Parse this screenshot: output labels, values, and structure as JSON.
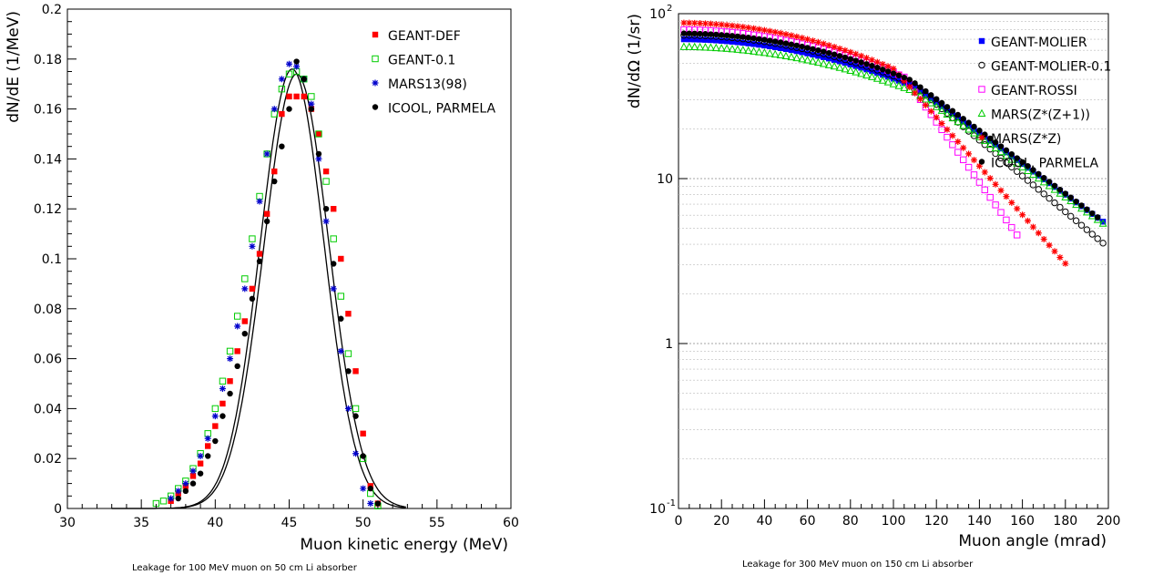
{
  "chart_data": [
    {
      "type": "scatter",
      "xlabel": "Muon kinetic energy (MeV)",
      "ylabel": "dN/dE    (1/MeV)",
      "caption": "Leakage for 100 MeV muon on 50 cm Li absorber",
      "xlim": [
        30,
        60
      ],
      "ylim": [
        0,
        0.2
      ],
      "x_ticks": [
        "30",
        "35",
        "40",
        "45",
        "50",
        "55",
        "60"
      ],
      "y_ticks": [
        "0",
        "0.02",
        "0.04",
        "0.06",
        "0.08",
        "0.1",
        "0.12",
        "0.14",
        "0.16",
        "0.18",
        "0.2"
      ],
      "legend_position": "top-right",
      "fit_curves": [
        {
          "mean": 45.2,
          "sigma": 2.15,
          "amplitude": 0.176,
          "color": "#000000"
        },
        {
          "mean": 45.5,
          "sigma": 2.2,
          "amplitude": 0.174,
          "color": "#000000"
        }
      ],
      "series": [
        {
          "name": "GEANT-DEF",
          "marker": "filled-square",
          "color": "#ff0000",
          "points": [
            [
              37.0,
              0.003
            ],
            [
              37.5,
              0.006
            ],
            [
              38.0,
              0.009
            ],
            [
              38.5,
              0.013
            ],
            [
              39.0,
              0.018
            ],
            [
              39.5,
              0.025
            ],
            [
              40.0,
              0.033
            ],
            [
              40.5,
              0.042
            ],
            [
              41.0,
              0.051
            ],
            [
              41.5,
              0.063
            ],
            [
              42.0,
              0.075
            ],
            [
              42.5,
              0.088
            ],
            [
              43.0,
              0.102
            ],
            [
              43.5,
              0.118
            ],
            [
              44.0,
              0.135
            ],
            [
              44.5,
              0.158
            ],
            [
              45.0,
              0.165
            ],
            [
              45.5,
              0.165
            ],
            [
              46.0,
              0.165
            ],
            [
              46.5,
              0.16
            ],
            [
              47.0,
              0.15
            ],
            [
              47.5,
              0.135
            ],
            [
              48.0,
              0.12
            ],
            [
              48.5,
              0.1
            ],
            [
              49.0,
              0.078
            ],
            [
              49.5,
              0.055
            ],
            [
              50.0,
              0.03
            ],
            [
              50.5,
              0.009
            ],
            [
              51.0,
              0.002
            ]
          ]
        },
        {
          "name": "GEANT-0.1",
          "marker": "open-square",
          "color": "#00cc00",
          "points": [
            [
              36.0,
              0.002
            ],
            [
              36.5,
              0.003
            ],
            [
              37.0,
              0.005
            ],
            [
              37.5,
              0.008
            ],
            [
              38.0,
              0.011
            ],
            [
              38.5,
              0.016
            ],
            [
              39.0,
              0.022
            ],
            [
              39.5,
              0.03
            ],
            [
              40.0,
              0.04
            ],
            [
              40.5,
              0.051
            ],
            [
              41.0,
              0.063
            ],
            [
              41.5,
              0.077
            ],
            [
              42.0,
              0.092
            ],
            [
              42.5,
              0.108
            ],
            [
              43.0,
              0.125
            ],
            [
              43.5,
              0.142
            ],
            [
              44.0,
              0.158
            ],
            [
              44.5,
              0.168
            ],
            [
              45.0,
              0.174
            ],
            [
              45.5,
              0.175
            ],
            [
              46.0,
              0.172
            ],
            [
              46.5,
              0.165
            ],
            [
              47.0,
              0.15
            ],
            [
              47.5,
              0.131
            ],
            [
              48.0,
              0.108
            ],
            [
              48.5,
              0.085
            ],
            [
              49.0,
              0.062
            ],
            [
              49.5,
              0.04
            ],
            [
              50.0,
              0.02
            ],
            [
              50.5,
              0.006
            ],
            [
              51.0,
              0.001
            ]
          ]
        },
        {
          "name": "MARS13(98)",
          "marker": "star",
          "color": "#0000cc",
          "points": [
            [
              37.0,
              0.004
            ],
            [
              37.5,
              0.007
            ],
            [
              38.0,
              0.01
            ],
            [
              38.5,
              0.015
            ],
            [
              39.0,
              0.021
            ],
            [
              39.5,
              0.028
            ],
            [
              40.0,
              0.037
            ],
            [
              40.5,
              0.048
            ],
            [
              41.0,
              0.06
            ],
            [
              41.5,
              0.073
            ],
            [
              42.0,
              0.088
            ],
            [
              42.5,
              0.105
            ],
            [
              43.0,
              0.123
            ],
            [
              43.5,
              0.142
            ],
            [
              44.0,
              0.16
            ],
            [
              44.5,
              0.172
            ],
            [
              45.0,
              0.178
            ],
            [
              45.5,
              0.177
            ],
            [
              46.0,
              0.172
            ],
            [
              46.5,
              0.162
            ],
            [
              47.0,
              0.14
            ],
            [
              47.5,
              0.115
            ],
            [
              48.0,
              0.088
            ],
            [
              48.5,
              0.063
            ],
            [
              49.0,
              0.04
            ],
            [
              49.5,
              0.022
            ],
            [
              50.0,
              0.008
            ],
            [
              50.5,
              0.002
            ]
          ]
        },
        {
          "name": "ICOOL, PARMELA",
          "marker": "filled-circle",
          "color": "#000000",
          "points": [
            [
              37.5,
              0.004
            ],
            [
              38.0,
              0.007
            ],
            [
              38.5,
              0.01
            ],
            [
              39.0,
              0.014
            ],
            [
              39.5,
              0.021
            ],
            [
              40.0,
              0.027
            ],
            [
              40.5,
              0.037
            ],
            [
              41.0,
              0.046
            ],
            [
              41.5,
              0.057
            ],
            [
              42.0,
              0.07
            ],
            [
              42.5,
              0.084
            ],
            [
              43.0,
              0.099
            ],
            [
              43.5,
              0.115
            ],
            [
              44.0,
              0.131
            ],
            [
              44.5,
              0.145
            ],
            [
              45.0,
              0.16
            ],
            [
              45.5,
              0.179
            ],
            [
              46.0,
              0.172
            ],
            [
              46.5,
              0.16
            ],
            [
              47.0,
              0.142
            ],
            [
              47.5,
              0.12
            ],
            [
              48.0,
              0.098
            ],
            [
              48.5,
              0.076
            ],
            [
              49.0,
              0.055
            ],
            [
              49.5,
              0.037
            ],
            [
              50.0,
              0.021
            ],
            [
              50.5,
              0.008
            ],
            [
              51.0,
              0.002
            ]
          ]
        }
      ]
    },
    {
      "type": "scatter",
      "xlabel": "Muon angle (mrad)",
      "ylabel": "dN/dΩ    (1/sr)",
      "caption": "Leakage for 300 MeV muon on 150 cm Li absorber",
      "xlim": [
        0,
        200
      ],
      "ylim": [
        0.1,
        100
      ],
      "y_scale": "log",
      "x_ticks": [
        "0",
        "20",
        "40",
        "60",
        "80",
        "100",
        "120",
        "140",
        "160",
        "180",
        "200"
      ],
      "y_ticks": [
        "10",
        "1",
        "10"
      ],
      "y_tick_exponents": [
        "-1",
        "",
        "2"
      ],
      "y_ticks_middle": [
        "10",
        "1"
      ],
      "legend_position": "top-right",
      "series": [
        {
          "name": "GEANT-MOLIER",
          "marker": "filled-square",
          "color": "#0000ff",
          "y0": 70,
          "decay": 5.5e-05,
          "tail_start": 110,
          "tail_slope": 0.0215,
          "x_end": 198
        },
        {
          "name": "GEANT-MOLIER-0.1",
          "marker": "open-circle",
          "color": "#000000",
          "y0": 74,
          "decay": 5.7e-05,
          "tail_start": 108,
          "tail_slope": 0.025,
          "x_end": 198
        },
        {
          "name": "GEANT-ROSSI",
          "marker": "open-square",
          "color": "#ff00ff",
          "y0": 80,
          "decay": 6e-05,
          "tail_start": 105,
          "tail_slope": 0.042,
          "x_end": 158
        },
        {
          "name": "MARS(Z*(Z+1))",
          "marker": "open-triangle",
          "color": "#00cc00",
          "y0": 63,
          "decay": 5.2e-05,
          "tail_start": 110,
          "tail_slope": 0.021,
          "x_end": 198
        },
        {
          "name": "MARS(Z*Z)",
          "marker": "star",
          "color": "#ff0000",
          "y0": 88,
          "decay": 6.4e-05,
          "tail_start": 100,
          "tail_slope": 0.034,
          "x_end": 180
        },
        {
          "name": "ICOOL, PARMELA",
          "marker": "filled-circle",
          "color": "#000000",
          "y0": 76,
          "decay": 5.6e-05,
          "tail_start": 108,
          "tail_slope": 0.022,
          "x_end": 195
        }
      ]
    }
  ]
}
